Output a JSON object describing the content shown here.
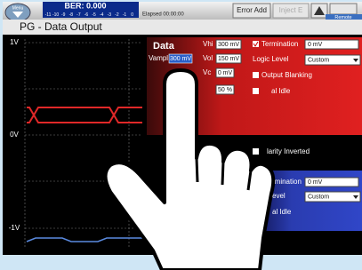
{
  "toolbar": {
    "menu": "Menu",
    "ber": "BER: 0.000",
    "scale": [
      "-11",
      "-10",
      "-9",
      "-8",
      "-7",
      "-6",
      "-5",
      "-4",
      "-3",
      "-2",
      "-1",
      "0"
    ],
    "elapsed": "Elapsed 00:00:00",
    "error_add": "Error Add",
    "inject": "Inject E",
    "remote": "Remote"
  },
  "title": "PG - Data Output",
  "scope": {
    "labels": [
      "1V",
      "0V",
      "-1V"
    ]
  },
  "data_panel": {
    "heading": "Data",
    "vampl_label": "Vampl",
    "vampl": "300 mV",
    "vhi_label": "Vhi",
    "vhi": "300 mV",
    "vlo_label": "Vol",
    "vlo": "150 mV",
    "vc_label": "Vc",
    "vc": "0 mV",
    "cross": "50 %"
  },
  "settings": {
    "termination_label": "Termination",
    "termination": "0 mV",
    "logic_label": "Logic Level",
    "logic": "Custom",
    "output_blanking": "Output Blanking",
    "idle": "al Idle",
    "polarity": "larity Inverted"
  },
  "lower_panel": {
    "termination_label": "rmination",
    "termination": "0 mV",
    "logic_label": "evel",
    "logic": "Custom",
    "idle": "al Idle"
  }
}
